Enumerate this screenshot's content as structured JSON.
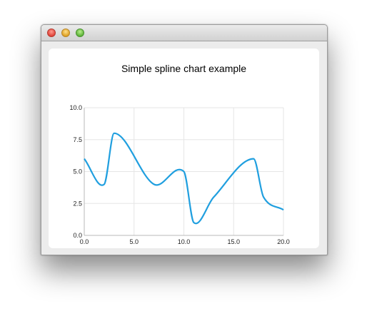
{
  "window": {
    "buttons": [
      "close",
      "minimize",
      "maximize"
    ]
  },
  "chart_data": {
    "type": "line",
    "title": "Simple spline chart example",
    "xlabel": "",
    "ylabel": "",
    "xlim": [
      0,
      20
    ],
    "ylim": [
      0,
      10
    ],
    "x_ticks": [
      "0.0",
      "5.0",
      "10.0",
      "15.0",
      "20.0"
    ],
    "y_ticks": [
      "0.0",
      "2.5",
      "5.0",
      "7.5",
      "10.0"
    ],
    "grid": true,
    "series": [
      {
        "color": "#209fdf",
        "smooth": true,
        "points": [
          [
            0,
            6
          ],
          [
            2,
            4
          ],
          [
            3,
            8
          ],
          [
            7,
            4
          ],
          [
            10,
            5
          ],
          [
            11,
            1
          ],
          [
            13,
            3
          ],
          [
            17,
            6
          ],
          [
            18,
            3
          ],
          [
            20,
            2
          ]
        ]
      }
    ]
  }
}
